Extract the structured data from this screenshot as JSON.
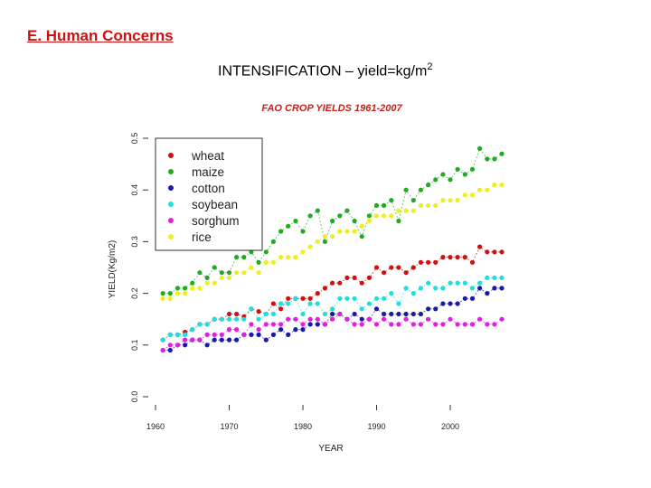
{
  "slide": {
    "heading": "E. Human Concerns",
    "title_main": "INTENSIFICATION – yield=kg/m",
    "title_sup": "2"
  },
  "chart_data": {
    "type": "scatter",
    "title": "FAO CROP YIELDS 1961-2007",
    "xlabel": "YEAR",
    "ylabel": "YIELD(Kg/m2)",
    "xlim": [
      1960,
      2008
    ],
    "ylim": [
      0.0,
      0.5
    ],
    "xticks": [
      1960,
      1970,
      1980,
      1990,
      2000
    ],
    "yticks": [
      "0.0",
      "0.1",
      "0.2",
      "0.3",
      "0.4",
      "0.5"
    ],
    "legend_position": "top-left",
    "series": [
      {
        "name": "wheat",
        "color": "#cc1111",
        "x": [
          1961,
          1962,
          1963,
          1964,
          1965,
          1966,
          1967,
          1968,
          1969,
          1970,
          1971,
          1972,
          1973,
          1974,
          1975,
          1976,
          1977,
          1978,
          1979,
          1980,
          1981,
          1982,
          1983,
          1984,
          1985,
          1986,
          1987,
          1988,
          1989,
          1990,
          1991,
          1992,
          1993,
          1994,
          1995,
          1996,
          1997,
          1998,
          1999,
          2000,
          2001,
          2002,
          2003,
          2004,
          2005,
          2006,
          2007
        ],
        "y": [
          0.11,
          0.12,
          0.12,
          0.125,
          0.13,
          0.14,
          0.14,
          0.15,
          0.15,
          0.16,
          0.16,
          0.155,
          0.17,
          0.165,
          0.16,
          0.18,
          0.17,
          0.19,
          0.19,
          0.19,
          0.19,
          0.2,
          0.21,
          0.22,
          0.22,
          0.23,
          0.23,
          0.22,
          0.23,
          0.25,
          0.24,
          0.25,
          0.25,
          0.24,
          0.25,
          0.26,
          0.26,
          0.26,
          0.27,
          0.27,
          0.27,
          0.27,
          0.26,
          0.29,
          0.28,
          0.28,
          0.28
        ]
      },
      {
        "name": "maize",
        "color": "#22aa22",
        "x": [
          1961,
          1962,
          1963,
          1964,
          1965,
          1966,
          1967,
          1968,
          1969,
          1970,
          1971,
          1972,
          1973,
          1974,
          1975,
          1976,
          1977,
          1978,
          1979,
          1980,
          1981,
          1982,
          1983,
          1984,
          1985,
          1986,
          1987,
          1988,
          1989,
          1990,
          1991,
          1992,
          1993,
          1994,
          1995,
          1996,
          1997,
          1998,
          1999,
          2000,
          2001,
          2002,
          2003,
          2004,
          2005,
          2006,
          2007
        ],
        "y": [
          0.2,
          0.2,
          0.21,
          0.21,
          0.22,
          0.24,
          0.23,
          0.25,
          0.24,
          0.24,
          0.27,
          0.27,
          0.28,
          0.26,
          0.28,
          0.3,
          0.32,
          0.33,
          0.34,
          0.32,
          0.35,
          0.36,
          0.3,
          0.34,
          0.35,
          0.36,
          0.34,
          0.31,
          0.35,
          0.37,
          0.37,
          0.38,
          0.34,
          0.4,
          0.38,
          0.4,
          0.41,
          0.42,
          0.43,
          0.42,
          0.44,
          0.43,
          0.44,
          0.48,
          0.46,
          0.46,
          0.47
        ]
      },
      {
        "name": "cotton",
        "color": "#1a1aaa",
        "x": [
          1961,
          1962,
          1963,
          1964,
          1965,
          1966,
          1967,
          1968,
          1969,
          1970,
          1971,
          1972,
          1973,
          1974,
          1975,
          1976,
          1977,
          1978,
          1979,
          1980,
          1981,
          1982,
          1983,
          1984,
          1985,
          1986,
          1987,
          1988,
          1989,
          1990,
          1991,
          1992,
          1993,
          1994,
          1995,
          1996,
          1997,
          1998,
          1999,
          2000,
          2001,
          2002,
          2003,
          2004,
          2005,
          2006,
          2007
        ],
        "y": [
          0.09,
          0.09,
          0.1,
          0.1,
          0.11,
          0.11,
          0.1,
          0.11,
          0.11,
          0.11,
          0.11,
          0.12,
          0.12,
          0.12,
          0.11,
          0.12,
          0.13,
          0.12,
          0.13,
          0.13,
          0.14,
          0.14,
          0.14,
          0.16,
          0.16,
          0.15,
          0.16,
          0.15,
          0.15,
          0.17,
          0.16,
          0.16,
          0.16,
          0.16,
          0.16,
          0.16,
          0.17,
          0.17,
          0.18,
          0.18,
          0.18,
          0.19,
          0.19,
          0.21,
          0.2,
          0.21,
          0.21
        ]
      },
      {
        "name": "soybean",
        "color": "#22dddd",
        "x": [
          1961,
          1962,
          1963,
          1964,
          1965,
          1966,
          1967,
          1968,
          1969,
          1970,
          1971,
          1972,
          1973,
          1974,
          1975,
          1976,
          1977,
          1978,
          1979,
          1980,
          1981,
          1982,
          1983,
          1984,
          1985,
          1986,
          1987,
          1988,
          1989,
          1990,
          1991,
          1992,
          1993,
          1994,
          1995,
          1996,
          1997,
          1998,
          1999,
          2000,
          2001,
          2002,
          2003,
          2004,
          2005,
          2006,
          2007
        ],
        "y": [
          0.11,
          0.12,
          0.12,
          0.12,
          0.13,
          0.14,
          0.14,
          0.15,
          0.15,
          0.15,
          0.15,
          0.15,
          0.17,
          0.15,
          0.16,
          0.16,
          0.18,
          0.18,
          0.19,
          0.16,
          0.18,
          0.18,
          0.16,
          0.17,
          0.19,
          0.19,
          0.19,
          0.17,
          0.18,
          0.19,
          0.19,
          0.2,
          0.18,
          0.21,
          0.2,
          0.21,
          0.22,
          0.21,
          0.21,
          0.22,
          0.22,
          0.22,
          0.21,
          0.22,
          0.23,
          0.23,
          0.23
        ]
      },
      {
        "name": "sorghum",
        "color": "#dd22dd",
        "x": [
          1961,
          1962,
          1963,
          1964,
          1965,
          1966,
          1967,
          1968,
          1969,
          1970,
          1971,
          1972,
          1973,
          1974,
          1975,
          1976,
          1977,
          1978,
          1979,
          1980,
          1981,
          1982,
          1983,
          1984,
          1985,
          1986,
          1987,
          1988,
          1989,
          1990,
          1991,
          1992,
          1993,
          1994,
          1995,
          1996,
          1997,
          1998,
          1999,
          2000,
          2001,
          2002,
          2003,
          2004,
          2005,
          2006,
          2007
        ],
        "y": [
          0.09,
          0.1,
          0.1,
          0.11,
          0.11,
          0.11,
          0.12,
          0.12,
          0.12,
          0.13,
          0.13,
          0.12,
          0.14,
          0.13,
          0.14,
          0.14,
          0.14,
          0.15,
          0.15,
          0.14,
          0.15,
          0.15,
          0.14,
          0.15,
          0.16,
          0.15,
          0.14,
          0.14,
          0.15,
          0.14,
          0.15,
          0.14,
          0.14,
          0.15,
          0.14,
          0.14,
          0.15,
          0.14,
          0.14,
          0.15,
          0.14,
          0.14,
          0.14,
          0.15,
          0.14,
          0.14,
          0.15
        ]
      },
      {
        "name": "rice",
        "color": "#eeee22",
        "x": [
          1961,
          1962,
          1963,
          1964,
          1965,
          1966,
          1967,
          1968,
          1969,
          1970,
          1971,
          1972,
          1973,
          1974,
          1975,
          1976,
          1977,
          1978,
          1979,
          1980,
          1981,
          1982,
          1983,
          1984,
          1985,
          1986,
          1987,
          1988,
          1989,
          1990,
          1991,
          1992,
          1993,
          1994,
          1995,
          1996,
          1997,
          1998,
          1999,
          2000,
          2001,
          2002,
          2003,
          2004,
          2005,
          2006,
          2007
        ],
        "y": [
          0.19,
          0.19,
          0.2,
          0.2,
          0.21,
          0.21,
          0.22,
          0.22,
          0.23,
          0.23,
          0.24,
          0.24,
          0.25,
          0.24,
          0.26,
          0.26,
          0.27,
          0.27,
          0.27,
          0.28,
          0.29,
          0.3,
          0.31,
          0.31,
          0.32,
          0.32,
          0.32,
          0.33,
          0.34,
          0.35,
          0.35,
          0.35,
          0.36,
          0.36,
          0.36,
          0.37,
          0.37,
          0.37,
          0.38,
          0.38,
          0.38,
          0.39,
          0.39,
          0.4,
          0.4,
          0.41,
          0.41
        ]
      }
    ]
  }
}
